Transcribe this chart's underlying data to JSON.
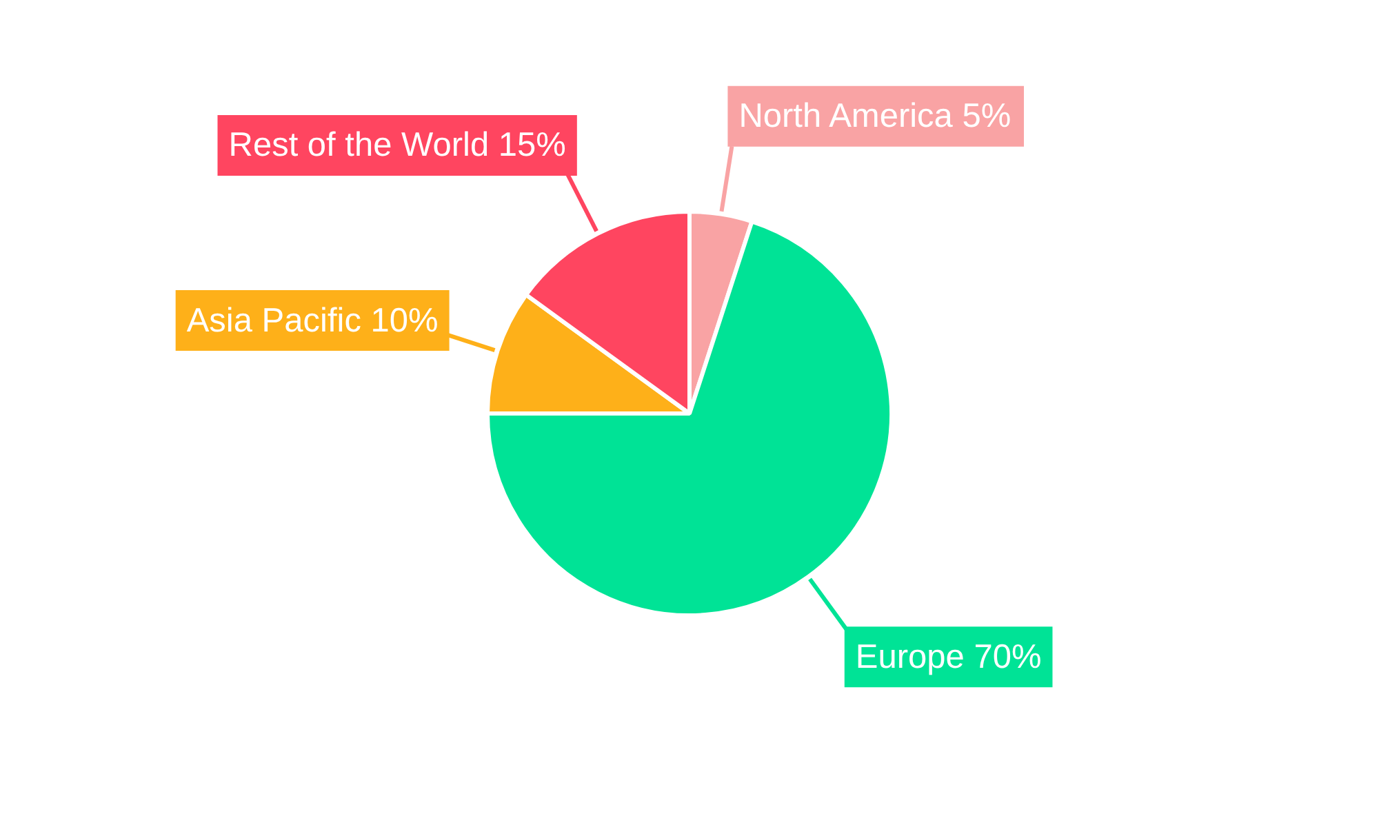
{
  "chart_data": {
    "type": "pie",
    "categories": [
      "North America",
      "Europe",
      "Asia Pacific",
      "Rest of the World"
    ],
    "values": [
      5,
      70,
      10,
      15
    ],
    "colors": [
      "#f9a3a4",
      "#00e396",
      "#feb019",
      "#ff4560"
    ],
    "value_labels": [
      "5%",
      "70%",
      "10%",
      "15%"
    ],
    "legend": false
  }
}
